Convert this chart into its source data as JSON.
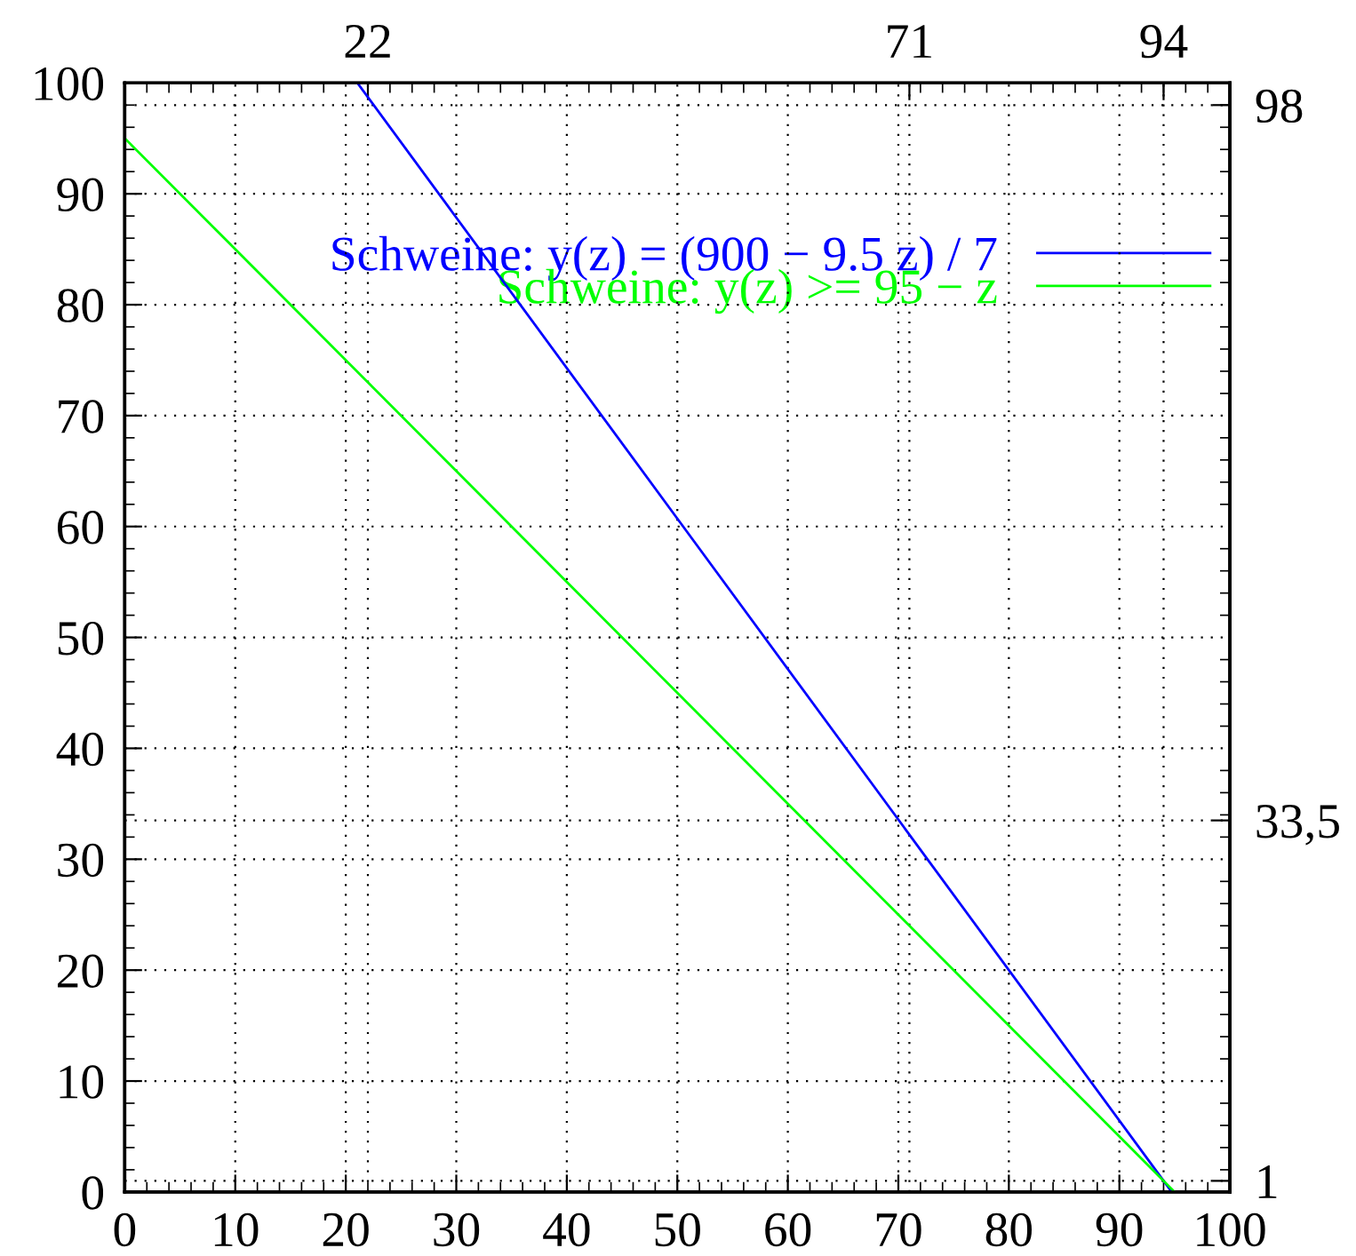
{
  "chart_data": {
    "type": "line",
    "series": [
      {
        "name": "Schweine: y(z) = (900 − 9.5 z) / 7",
        "color": "#0000ff",
        "x": [
          21.05,
          94.74
        ],
        "values": [
          100,
          0
        ]
      },
      {
        "name": "Schweine: y(z) >= 95 − z",
        "color": "#00ff00",
        "x": [
          0,
          95
        ],
        "values": [
          95,
          0
        ]
      }
    ],
    "xlim": [
      0,
      100
    ],
    "xticks": [
      0,
      10,
      20,
      30,
      40,
      50,
      60,
      70,
      80,
      90,
      100
    ],
    "ylim": [
      0,
      100
    ],
    "yticks": [
      0,
      10,
      20,
      30,
      40,
      50,
      60,
      70,
      80,
      90,
      100
    ],
    "x2lim": [
      0,
      100
    ],
    "x2ticks": [
      22,
      71,
      94
    ],
    "y2lim": [
      0,
      100
    ],
    "y2ticks": [
      98,
      {
        "value": 33.5,
        "label": "33,5"
      },
      1
    ],
    "grid": true,
    "legend": "top right",
    "marker": "none",
    "line_style": "solid"
  }
}
